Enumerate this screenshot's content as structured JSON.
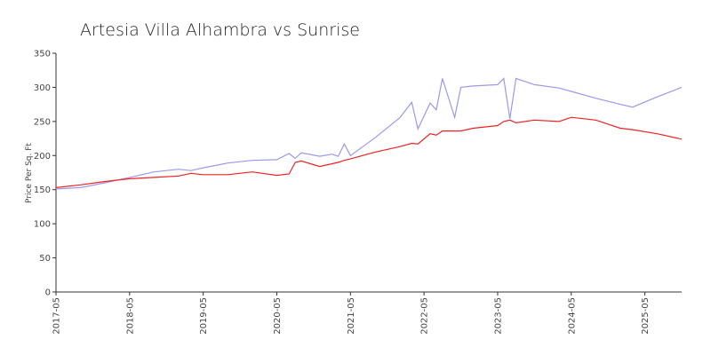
{
  "chart_data": {
    "type": "line",
    "title": "Artesia Villa Alhambra vs Sunrise",
    "y_label": "Price Per Sq. Ft",
    "x": [
      "2017-05",
      "2017-09",
      "2018-01",
      "2018-05",
      "2018-09",
      "2019-01",
      "2019-03",
      "2019-05",
      "2019-09",
      "2020-01",
      "2020-05",
      "2020-07",
      "2020-08",
      "2020-09",
      "2020-12",
      "2021-02",
      "2021-03",
      "2021-04",
      "2021-05",
      "2021-09",
      "2022-01",
      "2022-03",
      "2022-04",
      "2022-06",
      "2022-07",
      "2022-08",
      "2022-10",
      "2022-11",
      "2023-01",
      "2023-05",
      "2023-06",
      "2023-07",
      "2023-08",
      "2023-11",
      "2024-03",
      "2024-05",
      "2024-09",
      "2025-01",
      "2025-03",
      "2025-07",
      "2025-11"
    ],
    "series": [
      {
        "color": "#9999ee",
        "values": [
          151,
          153,
          160,
          168,
          176,
          180,
          178,
          182,
          189,
          193,
          194,
          203,
          196,
          204,
          199,
          202,
          199,
          217,
          200,
          226,
          255,
          278,
          239,
          277,
          267,
          313,
          256,
          300,
          302,
          304,
          313,
          254,
          313,
          304,
          299,
          294,
          284,
          275,
          271,
          286,
          300
        ]
      },
      {
        "color": "#ee2222",
        "values": [
          153,
          157,
          162,
          166,
          168,
          170,
          174,
          172,
          172,
          176,
          171,
          173,
          190,
          192,
          184,
          188,
          190,
          193,
          195,
          205,
          213,
          218,
          217,
          232,
          230,
          236,
          236,
          236,
          240,
          244,
          250,
          252,
          248,
          252,
          250,
          256,
          252,
          240,
          238,
          232,
          224
        ]
      }
    ],
    "xlim": [
      "2017-05",
      "2025-11"
    ],
    "xticks": [
      "2017-05",
      "2018-05",
      "2019-05",
      "2020-05",
      "2021-05",
      "2022-05",
      "2023-05",
      "2024-05",
      "2025-05"
    ],
    "ylim": [
      0,
      350
    ],
    "yticks": [
      0,
      50,
      100,
      150,
      200,
      250,
      300,
      350
    ],
    "grid": false
  }
}
